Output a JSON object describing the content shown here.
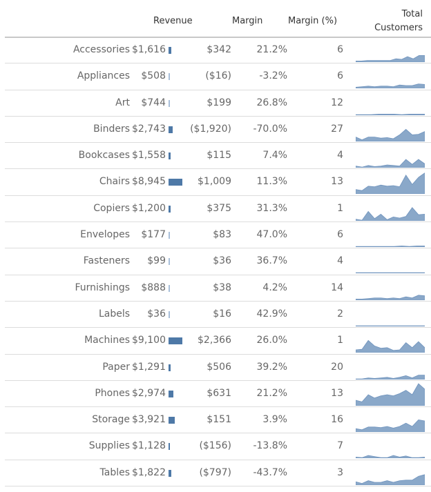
{
  "headers": {
    "revenue": "Revenue",
    "margin": "Margin",
    "margin_pct": "Margin (%)",
    "total_customers_line1": "Total",
    "total_customers_line2": "Customers"
  },
  "colors": {
    "bar": "#4e79a7",
    "bar_light": "#a9bfd9",
    "spark_fill": "#8aa8c9",
    "spark_line": "#6f93bd"
  },
  "rows": [
    {
      "category": "Accessories",
      "revenue": "$1,616",
      "revenue_value": 1616,
      "margin": "$342",
      "margin_pct": "21.2%",
      "customers": "6",
      "spark": [
        2,
        2,
        3,
        3,
        3,
        3,
        3,
        6,
        5,
        10,
        6,
        12,
        12
      ]
    },
    {
      "category": "Appliances",
      "revenue": "$508",
      "revenue_value": 508,
      "margin": "($16)",
      "margin_pct": "-3.2%",
      "customers": "6",
      "spark": [
        2,
        3,
        4,
        3,
        4,
        4,
        3,
        6,
        5,
        5,
        8,
        7
      ]
    },
    {
      "category": "Art",
      "revenue": "$744",
      "revenue_value": 744,
      "margin": "$199",
      "margin_pct": "26.8%",
      "customers": "12",
      "spark": [
        1,
        1,
        1,
        2,
        2,
        2,
        1,
        2,
        2,
        2
      ]
    },
    {
      "category": "Binders",
      "revenue": "$2,743",
      "revenue_value": 2743,
      "margin": "($1,920)",
      "margin_pct": "-70.0%",
      "customers": "27",
      "spark": [
        8,
        3,
        8,
        8,
        6,
        7,
        5,
        12,
        22,
        12,
        13,
        18
      ]
    },
    {
      "category": "Bookcases",
      "revenue": "$1,558",
      "revenue_value": 1558,
      "margin": "$115",
      "margin_pct": "7.4%",
      "customers": "4",
      "spark": [
        3,
        1,
        4,
        2,
        3,
        5,
        4,
        3,
        15,
        6,
        15,
        7
      ]
    },
    {
      "category": "Chairs",
      "revenue": "$8,945",
      "revenue_value": 8945,
      "margin": "$1,009",
      "margin_pct": "11.3%",
      "customers": "13",
      "spark": [
        8,
        6,
        14,
        13,
        16,
        14,
        15,
        13,
        34,
        17,
        30,
        38
      ]
    },
    {
      "category": "Copiers",
      "revenue": "$1,200",
      "revenue_value": 1200,
      "margin": "$375",
      "margin_pct": "31.3%",
      "customers": "1",
      "spark": [
        3,
        1,
        17,
        4,
        12,
        2,
        7,
        5,
        8,
        24,
        11,
        12
      ]
    },
    {
      "category": "Envelopes",
      "revenue": "$177",
      "revenue_value": 177,
      "margin": "$83",
      "margin_pct": "47.0%",
      "customers": "6",
      "spark": [
        1,
        1,
        1,
        1,
        1,
        1,
        2,
        1,
        2,
        2
      ]
    },
    {
      "category": "Fasteners",
      "revenue": "$99",
      "revenue_value": 99,
      "margin": "$36",
      "margin_pct": "36.7%",
      "customers": "4",
      "spark": [
        1,
        1,
        1,
        1,
        1,
        1,
        1,
        1
      ]
    },
    {
      "category": "Furnishings",
      "revenue": "$888",
      "revenue_value": 888,
      "margin": "$38",
      "margin_pct": "4.2%",
      "customers": "14",
      "spark": [
        2,
        2,
        3,
        4,
        4,
        3,
        4,
        3,
        6,
        4,
        9,
        8
      ]
    },
    {
      "category": "Labels",
      "revenue": "$36",
      "revenue_value": 36,
      "margin": "$16",
      "margin_pct": "42.9%",
      "customers": "2",
      "spark": [
        1,
        1,
        1,
        1,
        1,
        1,
        1,
        1
      ]
    },
    {
      "category": "Machines",
      "revenue": "$9,100",
      "revenue_value": 9100,
      "margin": "$2,366",
      "margin_pct": "26.0%",
      "customers": "1",
      "spark": [
        5,
        6,
        22,
        12,
        8,
        9,
        4,
        5,
        18,
        9,
        20,
        9
      ]
    },
    {
      "category": "Paper",
      "revenue": "$1,291",
      "revenue_value": 1291,
      "margin": "$506",
      "margin_pct": "39.2%",
      "customers": "20",
      "spark": [
        1,
        1,
        3,
        2,
        3,
        4,
        2,
        4,
        7,
        3,
        8,
        8
      ]
    },
    {
      "category": "Phones",
      "revenue": "$2,974",
      "revenue_value": 2974,
      "margin": "$631",
      "margin_pct": "21.2%",
      "customers": "13",
      "spark": [
        10,
        7,
        20,
        14,
        18,
        20,
        18,
        22,
        28,
        20,
        40,
        30
      ]
    },
    {
      "category": "Storage",
      "revenue": "$3,921",
      "revenue_value": 3921,
      "margin": "$151",
      "margin_pct": "3.9%",
      "customers": "16",
      "spark": [
        6,
        4,
        9,
        9,
        8,
        10,
        7,
        10,
        16,
        10,
        22,
        20
      ]
    },
    {
      "category": "Supplies",
      "revenue": "$1,128",
      "revenue_value": 1128,
      "margin": "($156)",
      "margin_pct": "-13.8%",
      "customers": "7",
      "spark": [
        2,
        1,
        5,
        3,
        1,
        1,
        5,
        2,
        4,
        1,
        1,
        2
      ]
    },
    {
      "category": "Tables",
      "revenue": "$1,822",
      "revenue_value": 1822,
      "margin": "($797)",
      "margin_pct": "-43.7%",
      "customers": "3",
      "spark": [
        6,
        3,
        8,
        5,
        5,
        8,
        5,
        8,
        9,
        9,
        16,
        19
      ]
    }
  ],
  "chart_data": {
    "type": "table",
    "title": "",
    "columns": [
      "Category",
      "Revenue",
      "Margin",
      "Margin (%)",
      "Total Customers"
    ],
    "categories": [
      "Accessories",
      "Appliances",
      "Art",
      "Binders",
      "Bookcases",
      "Chairs",
      "Copiers",
      "Envelopes",
      "Fasteners",
      "Furnishings",
      "Labels",
      "Machines",
      "Paper",
      "Phones",
      "Storage",
      "Supplies",
      "Tables"
    ],
    "series": [
      {
        "name": "Revenue",
        "values": [
          1616,
          508,
          744,
          2743,
          1558,
          8945,
          1200,
          177,
          99,
          888,
          36,
          9100,
          1291,
          2974,
          3921,
          1128,
          1822
        ]
      },
      {
        "name": "Margin",
        "values": [
          342,
          -16,
          199,
          -1920,
          115,
          1009,
          375,
          83,
          36,
          38,
          16,
          2366,
          506,
          631,
          151,
          -156,
          -797
        ]
      },
      {
        "name": "Margin (%)",
        "values": [
          21.2,
          -3.2,
          26.8,
          -70.0,
          7.4,
          11.3,
          31.3,
          47.0,
          36.7,
          4.2,
          42.9,
          26.0,
          39.2,
          21.2,
          3.9,
          -13.8,
          -43.7
        ]
      },
      {
        "name": "Total Customers",
        "values": [
          6,
          6,
          12,
          27,
          4,
          13,
          1,
          6,
          4,
          14,
          2,
          1,
          20,
          13,
          16,
          7,
          3
        ]
      }
    ],
    "embedded_visuals": {
      "revenue_bar": "horizontal mini bar proportional to revenue",
      "total_customers_sparkline": "area sparkline trend per category"
    },
    "grid": true
  }
}
